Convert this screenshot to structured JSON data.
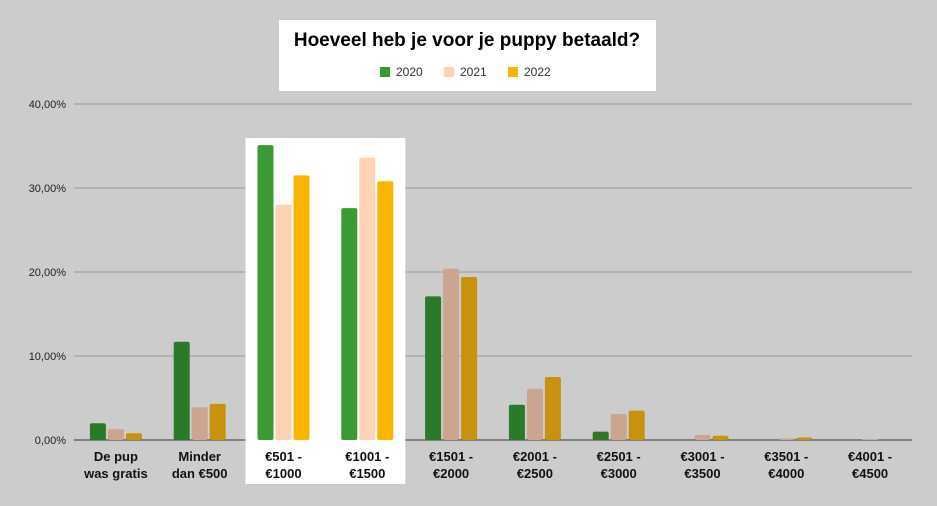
{
  "chart_data": {
    "type": "bar",
    "title": "Hoeveel heb je voor je puppy betaald?",
    "xlabel": "",
    "ylabel": "",
    "ylim": [
      0,
      40
    ],
    "yticks": [
      "0,00%",
      "10,00%",
      "20,00%",
      "30,00%",
      "40,00%"
    ],
    "grid": true,
    "legend_position": "top",
    "highlighted_categories": [
      2,
      3
    ],
    "categories": [
      [
        "De pup",
        "was gratis"
      ],
      [
        "Minder",
        "dan €500"
      ],
      [
        "€501 -",
        "€1000"
      ],
      [
        "€1001 -",
        "€1500"
      ],
      [
        "€1501 -",
        "€2000"
      ],
      [
        "€2001 -",
        "€2500"
      ],
      [
        "€2501 -",
        "€3000"
      ],
      [
        "€3001 -",
        "€3500"
      ],
      [
        "€3501 -",
        "€4000"
      ],
      [
        "€4001 -",
        "€4500"
      ]
    ],
    "series": [
      {
        "name": "2020",
        "color": "#3a9a34",
        "muted_color": "#2a7a2a",
        "values": [
          2.0,
          11.7,
          35.1,
          27.6,
          17.1,
          4.2,
          1.0,
          0.0,
          0.0,
          0.0
        ]
      },
      {
        "name": "2021",
        "color": "#fcd3b5",
        "muted_color": "#cba58f",
        "values": [
          1.3,
          3.9,
          28.0,
          33.6,
          20.4,
          6.1,
          3.1,
          0.6,
          0.2,
          0.1
        ]
      },
      {
        "name": "2022",
        "color": "#f9b500",
        "muted_color": "#c8920e",
        "values": [
          0.8,
          4.3,
          31.5,
          30.8,
          19.4,
          7.5,
          3.5,
          0.5,
          0.3,
          0.0
        ]
      }
    ]
  }
}
